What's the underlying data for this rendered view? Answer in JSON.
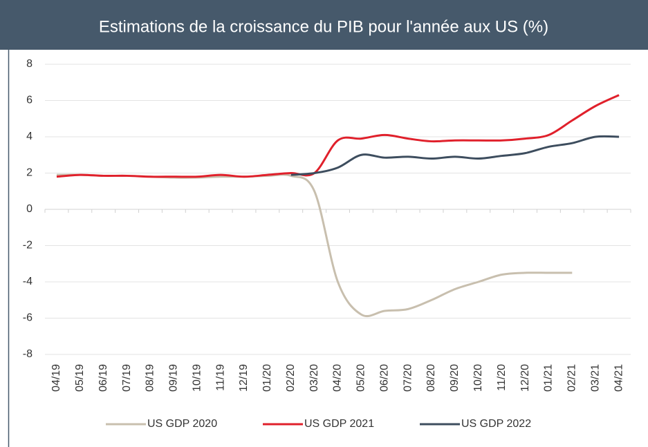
{
  "chart_data": {
    "type": "line",
    "title": "Estimations de la croissance du PIB pour l'année aux US (%)",
    "categories": [
      "04/19",
      "05/19",
      "06/19",
      "07/19",
      "08/19",
      "09/19",
      "10/19",
      "11/19",
      "12/19",
      "01/20",
      "02/20",
      "03/20",
      "04/20",
      "05/20",
      "06/20",
      "07/20",
      "08/20",
      "09/20",
      "10/20",
      "11/20",
      "12/20",
      "01/21",
      "02/21",
      "03/21",
      "04/21"
    ],
    "series": [
      {
        "name": "US GDP 2020",
        "color": "#c8bfae",
        "values": [
          1.9,
          1.9,
          1.85,
          1.85,
          1.8,
          1.75,
          1.75,
          1.8,
          1.8,
          1.85,
          1.85,
          1.0,
          -4.0,
          -5.8,
          -5.6,
          -5.5,
          -5.0,
          -4.4,
          -4.0,
          -3.6,
          -3.5,
          -3.5,
          -3.5,
          null,
          null
        ]
      },
      {
        "name": "US GDP 2021",
        "color": "#e0202b",
        "values": [
          1.8,
          1.9,
          1.85,
          1.85,
          1.8,
          1.8,
          1.8,
          1.9,
          1.8,
          1.9,
          2.0,
          2.0,
          3.8,
          3.9,
          4.1,
          3.9,
          3.75,
          3.8,
          3.8,
          3.8,
          3.9,
          4.1,
          4.9,
          5.7,
          6.3
        ]
      },
      {
        "name": "US GDP 2022",
        "color": "#3d4d5e",
        "values": [
          null,
          null,
          null,
          null,
          null,
          null,
          null,
          null,
          null,
          null,
          1.9,
          2.0,
          2.3,
          3.0,
          2.85,
          2.9,
          2.8,
          2.9,
          2.8,
          2.95,
          3.1,
          3.45,
          3.65,
          4.0,
          4.0
        ]
      }
    ],
    "ylim": [
      -8,
      8
    ],
    "yticks": [
      -8,
      -6,
      -4,
      -2,
      0,
      2,
      4,
      6,
      8
    ],
    "grid": true,
    "legend": "bottom"
  }
}
